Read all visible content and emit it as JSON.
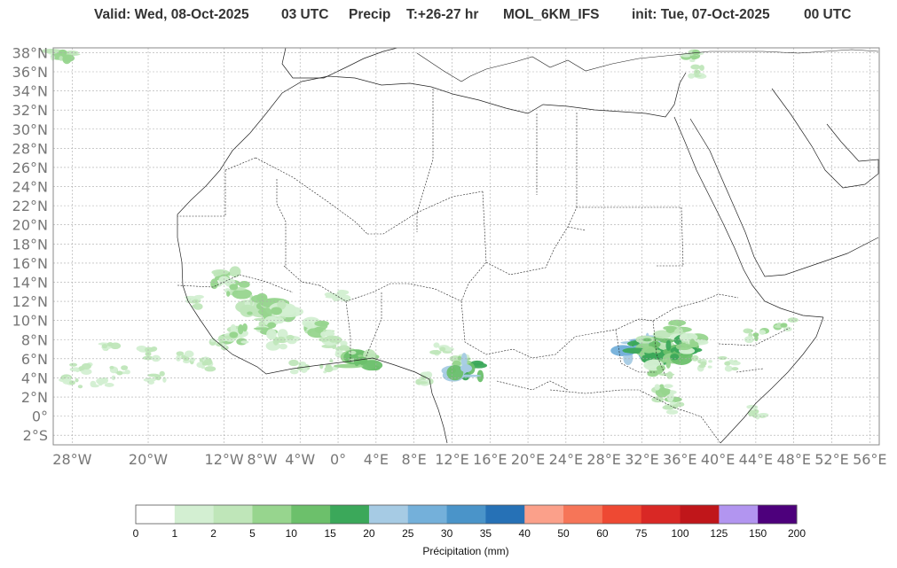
{
  "header": {
    "valid": "Valid: Wed, 08-Oct-2025",
    "time": "03 UTC",
    "field": "Precip",
    "lead": "T:+26-27 hr",
    "model": "MOL_6KM_IFS",
    "init": "init: Tue, 07-Oct-2025",
    "init_time": "00 UTC"
  },
  "map": {
    "lat_labels": [
      "38°N",
      "36°N",
      "34°N",
      "32°N",
      "30°N",
      "28°N",
      "26°N",
      "24°N",
      "22°N",
      "20°N",
      "18°N",
      "16°N",
      "14°N",
      "12°N",
      "10°N",
      "8°N",
      "6°N",
      "4°N",
      "2°N",
      "0°",
      "2°S"
    ],
    "lat_values": [
      38,
      36,
      34,
      32,
      30,
      28,
      26,
      24,
      22,
      20,
      18,
      16,
      14,
      12,
      10,
      8,
      6,
      4,
      2,
      0,
      -2
    ],
    "lon_labels": [
      "28°W",
      "20°W",
      "12°W",
      "8°W",
      "4°W",
      "0°",
      "4°E",
      "8°E",
      "12°E",
      "16°E",
      "20°E",
      "24°E",
      "28°E",
      "32°E",
      "36°E",
      "40°E",
      "44°E",
      "48°E",
      "52°E",
      "56°E"
    ],
    "lon_values": [
      -28,
      -20,
      -12,
      -8,
      -4,
      0,
      4,
      8,
      12,
      16,
      20,
      24,
      28,
      32,
      36,
      40,
      44,
      48,
      52,
      56
    ],
    "extent": {
      "lon_min": -30,
      "lon_max": 57,
      "lat_min": -3,
      "lat_max": 38.5
    },
    "grid": true
  },
  "precip_areas": [
    {
      "lon": -12,
      "lat": 14.5,
      "intensity": 2,
      "cls": 3
    },
    {
      "lon": -11,
      "lat": 13.5,
      "intensity": 2,
      "cls": 3
    },
    {
      "lon": -8,
      "lat": 11.5,
      "intensity": 3,
      "cls": 3
    },
    {
      "lon": -6.5,
      "lat": 11,
      "intensity": 3,
      "cls": 3
    },
    {
      "lon": -7,
      "lat": 9.5,
      "intensity": 2,
      "cls": 3
    },
    {
      "lon": -6,
      "lat": 8,
      "intensity": 2,
      "cls": 2
    },
    {
      "lon": -2,
      "lat": 9,
      "intensity": 2,
      "cls": 3
    },
    {
      "lon": -0.5,
      "lat": 8,
      "intensity": 2,
      "cls": 2
    },
    {
      "lon": 1,
      "lat": 7,
      "intensity": 1,
      "cls": 2
    },
    {
      "lon": -4,
      "lat": 5,
      "intensity": 1,
      "cls": 2
    },
    {
      "lon": -1,
      "lat": 5.2,
      "intensity": 1,
      "cls": 2
    },
    {
      "lon": 2.5,
      "lat": 5.8,
      "intensity": 3,
      "cls": 4
    },
    {
      "lon": -11,
      "lat": 8.5,
      "intensity": 2,
      "cls": 3
    },
    {
      "lon": -12.5,
      "lat": 7.5,
      "intensity": 1,
      "cls": 2
    },
    {
      "lon": -15,
      "lat": 12,
      "intensity": 1,
      "cls": 2
    },
    {
      "lon": 11,
      "lat": 7,
      "intensity": 1,
      "cls": 2
    },
    {
      "lon": 12.5,
      "lat": 5.5,
      "intensity": 2,
      "cls": 3
    },
    {
      "lon": 13.5,
      "lat": 5,
      "intensity": 3,
      "cls": 6
    },
    {
      "lon": 9,
      "lat": 4,
      "intensity": 1,
      "cls": 2
    },
    {
      "lon": 31.5,
      "lat": 7,
      "intensity": 3,
      "cls": 7
    },
    {
      "lon": 32.5,
      "lat": 6,
      "intensity": 3,
      "cls": 5
    },
    {
      "lon": 33.5,
      "lat": 7.5,
      "intensity": 2,
      "cls": 4
    },
    {
      "lon": 35,
      "lat": 9,
      "intensity": 2,
      "cls": 3
    },
    {
      "lon": 36,
      "lat": 7,
      "intensity": 3,
      "cls": 5
    },
    {
      "lon": 34,
      "lat": 5,
      "intensity": 2,
      "cls": 3
    },
    {
      "lon": 37.5,
      "lat": 7.5,
      "intensity": 2,
      "cls": 3
    },
    {
      "lon": 38.5,
      "lat": 5.5,
      "intensity": 1,
      "cls": 2
    },
    {
      "lon": 34.5,
      "lat": 2.5,
      "intensity": 2,
      "cls": 3
    },
    {
      "lon": 35.5,
      "lat": 1,
      "intensity": 1,
      "cls": 2
    },
    {
      "lon": 44,
      "lat": 8.5,
      "intensity": 1,
      "cls": 3
    },
    {
      "lon": 47,
      "lat": 9.5,
      "intensity": 1,
      "cls": 3
    },
    {
      "lon": 41,
      "lat": 5.5,
      "intensity": 1,
      "cls": 2
    },
    {
      "lon": 37.8,
      "lat": 36,
      "intensity": 1,
      "cls": 2
    },
    {
      "lon": 37.5,
      "lat": 37.5,
      "intensity": 1,
      "cls": 3
    },
    {
      "lon": -29,
      "lat": 38,
      "intensity": 2,
      "cls": 3
    },
    {
      "lon": 44,
      "lat": 0.5,
      "intensity": 1,
      "cls": 2
    },
    {
      "lon": 0,
      "lat": 12.5,
      "intensity": 1,
      "cls": 1
    },
    {
      "lon": -24,
      "lat": 7.5,
      "intensity": 1,
      "cls": 2
    },
    {
      "lon": -20,
      "lat": 6.5,
      "intensity": 1,
      "cls": 2
    },
    {
      "lon": -16,
      "lat": 6,
      "intensity": 1,
      "cls": 2
    },
    {
      "lon": -27,
      "lat": 5,
      "intensity": 1,
      "cls": 2
    },
    {
      "lon": -23,
      "lat": 4.5,
      "intensity": 1,
      "cls": 2
    },
    {
      "lon": -19,
      "lat": 4,
      "intensity": 1,
      "cls": 2
    },
    {
      "lon": -28,
      "lat": 3.5,
      "intensity": 1,
      "cls": 2
    },
    {
      "lon": -25,
      "lat": 3.5,
      "intensity": 1,
      "cls": 1
    },
    {
      "lon": -14,
      "lat": 5.5,
      "intensity": 1,
      "cls": 2
    }
  ],
  "colorbar": {
    "title": "Précipitation (mm)",
    "ticks": [
      "0",
      "1",
      "2",
      "5",
      "10",
      "15",
      "20",
      "25",
      "30",
      "35",
      "40",
      "50",
      "60",
      "75",
      "100",
      "125",
      "150",
      "200"
    ],
    "colors": [
      "#ffffff",
      "#d3efd2",
      "#bfe6b9",
      "#97d58e",
      "#6cc06b",
      "#3ba85a",
      "#a6cbe4",
      "#74b0da",
      "#4a94c9",
      "#2671b6",
      "#fba08a",
      "#f67558",
      "#ee4933",
      "#d92825",
      "#c0161a",
      "#b295f0",
      "#4d007c"
    ]
  }
}
